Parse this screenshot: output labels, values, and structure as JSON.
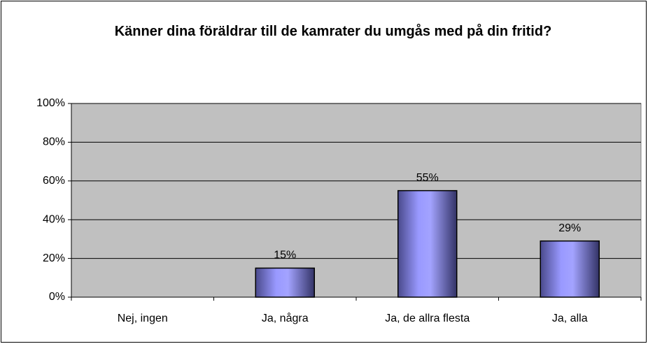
{
  "chart_data": {
    "type": "bar",
    "title": "Känner dina föräldrar till de kamrater du umgås med på din fritid?",
    "categories": [
      "Nej, ingen",
      "Ja, några",
      "Ja, de allra flesta",
      "Ja, alla"
    ],
    "values": [
      0,
      15,
      55,
      29
    ],
    "value_labels": [
      null,
      "15%",
      "55%",
      "29%"
    ],
    "color": "#9999ff",
    "ylim": [
      0,
      100
    ],
    "yticks": [
      {
        "value": 0,
        "label": "0%"
      },
      {
        "value": 20,
        "label": "20%"
      },
      {
        "value": 40,
        "label": "40%"
      },
      {
        "value": 60,
        "label": "60%"
      },
      {
        "value": 80,
        "label": "80%"
      },
      {
        "value": 100,
        "label": "100%"
      }
    ],
    "grid": true
  }
}
